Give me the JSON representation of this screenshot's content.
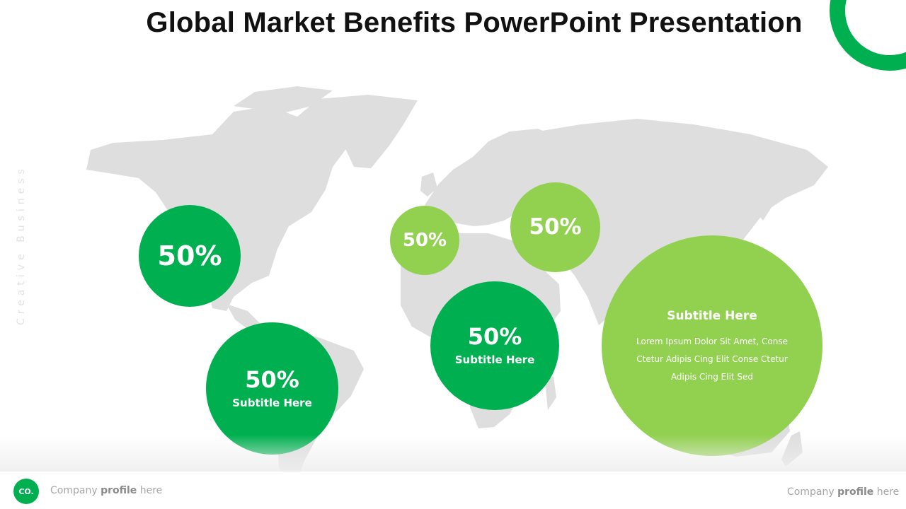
{
  "slide": {
    "title": "Global Market Benefits PowerPoint Presentation",
    "side_text": "Creative Business"
  },
  "colors": {
    "dark_green": "#00b050",
    "light_green": "#92d050",
    "map_gray": "#dedede"
  },
  "bubbles": {
    "north_america": {
      "value": "50%"
    },
    "south_america": {
      "value": "50%",
      "subtitle": "Subtitle Here"
    },
    "europe": {
      "value": "50%"
    },
    "middle_east": {
      "value": "50%"
    },
    "africa": {
      "value": "50%",
      "subtitle": "Subtitle Here"
    },
    "asia": {
      "subtitle": "Subtitle Here",
      "text": "Lorem Ipsum Dolor Sit Amet, Conse Ctetur Adipis Cing Elit Conse Ctetur Adipis Cing Elit Sed"
    }
  },
  "footer": {
    "logo": "CO.",
    "left_prefix": "Company",
    "left_bold": "profile",
    "left_suffix": "here",
    "right_prefix": "Company",
    "right_bold": "profile",
    "right_suffix": "here"
  }
}
